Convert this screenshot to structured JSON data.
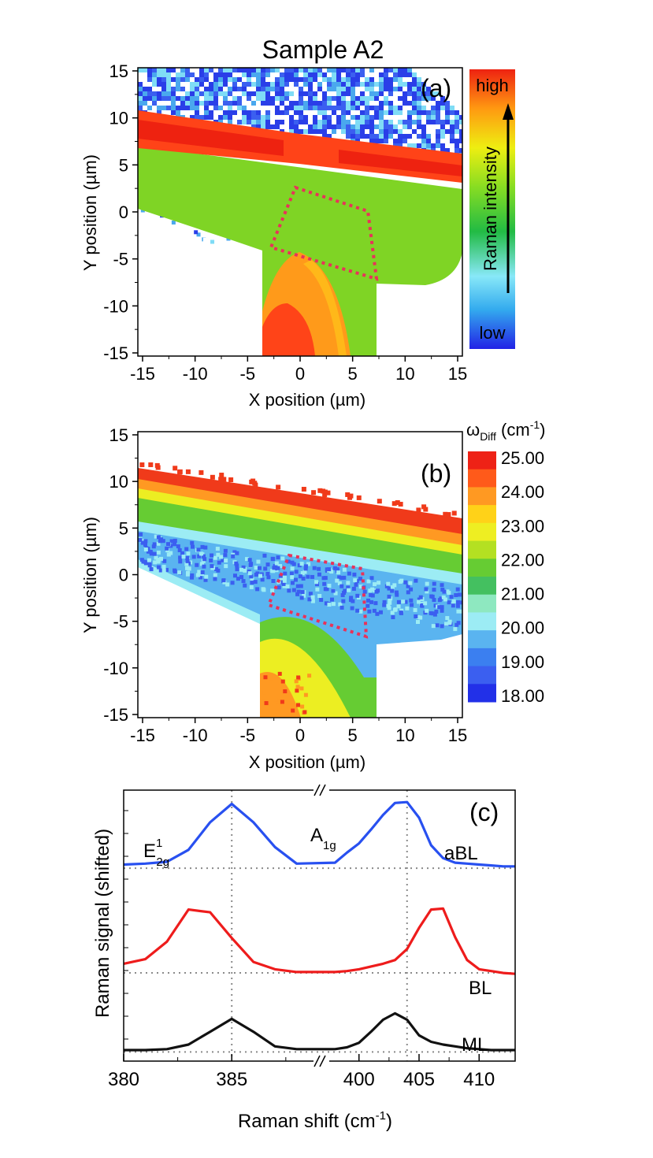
{
  "title": "Sample A2",
  "panels": {
    "a": {
      "label": "(a)",
      "xlabel": "X position (µm)",
      "ylabel": "Y position (µm)",
      "xticks": [
        "-15",
        "-10",
        "-5",
        "0",
        "5",
        "10",
        "15"
      ],
      "yticks": [
        "15",
        "10",
        "5",
        "0",
        "-5",
        "-10",
        "-15"
      ],
      "colorbar": {
        "high": "high",
        "low": "low",
        "label": "Raman intensity"
      }
    },
    "b": {
      "label": "(b)",
      "xlabel": "X position (µm)",
      "ylabel": "Y position (µm)",
      "xticks": [
        "-15",
        "-10",
        "-5",
        "0",
        "5",
        "10",
        "15"
      ],
      "yticks": [
        "15",
        "10",
        "5",
        "0",
        "-5",
        "-10",
        "-15"
      ],
      "colorbar": {
        "title_symbol": "ω",
        "title_sub": "Diff",
        "title_unit_pre": " (cm",
        "title_unit_sup": "-1",
        "title_unit_post": ")",
        "ticks": [
          "25.00",
          "24.00",
          "23.00",
          "22.00",
          "21.00",
          "20.00",
          "19.00",
          "18.00"
        ]
      }
    },
    "c": {
      "label": "(c)",
      "xlabel_pre": "Raman shift (cm",
      "xlabel_sup": "-1",
      "xlabel_post": ")",
      "ylabel": "Raman signal (shifted)",
      "xticks_left": [
        "380",
        "385"
      ],
      "xticks_right": [
        "400",
        "405",
        "410"
      ],
      "peak_e_main": "E",
      "peak_e_sup": "1",
      "peak_e_sub": "2g",
      "peak_a_main": "A",
      "peak_a_sub": "1g",
      "curve_labels": [
        "aBL",
        "BL",
        "ML"
      ]
    }
  },
  "colors": {
    "aBL": "#2850f0",
    "BL": "#ee1c1c",
    "ML": "#111111",
    "roi": "#e8325a",
    "grid": "#8a8a8a"
  },
  "chart_data": [
    {
      "type": "heatmap",
      "panel": "a",
      "title": "Sample A2",
      "xlabel": "X position (µm)",
      "ylabel": "Y position (µm)",
      "xlim": [
        -15,
        15
      ],
      "ylim": [
        -15,
        15
      ],
      "colorscale": [
        "low",
        "high"
      ],
      "colorbar_label": "Raman intensity",
      "roi": [
        [
          -2.5,
          2.5
        ],
        [
          4.5,
          0.5
        ],
        [
          7,
          -7
        ],
        [
          -3,
          -3.5
        ]
      ]
    },
    {
      "type": "heatmap",
      "panel": "b",
      "xlabel": "X position (µm)",
      "ylabel": "Y position (µm)",
      "xlim": [
        -15,
        15
      ],
      "ylim": [
        -15,
        15
      ],
      "colorbar_range": [
        18,
        25
      ],
      "colorbar_unit": "cm-1",
      "roi": [
        [
          -1.5,
          2.5
        ],
        [
          5.5,
          1.5
        ],
        [
          6,
          -7
        ],
        [
          -3,
          -3
        ]
      ]
    },
    {
      "type": "line",
      "panel": "c",
      "xlabel": "Raman shift (cm-1)",
      "ylabel": "Raman signal (shifted)",
      "x_breaks": [
        [
          388,
          398
        ]
      ],
      "vertical_refs": [
        385,
        404
      ],
      "series": [
        {
          "name": "aBL",
          "baseline_y": 2.0,
          "x": [
            380,
            381,
            382,
            383,
            384,
            385,
            386,
            387,
            388,
            398,
            399,
            400,
            401,
            402,
            403,
            404,
            405,
            406,
            407,
            408,
            409,
            410,
            411,
            412,
            413
          ],
          "y": [
            2.04,
            2.05,
            2.07,
            2.2,
            2.5,
            2.7,
            2.5,
            2.23,
            2.05,
            2.06,
            2.17,
            2.27,
            2.42,
            2.58,
            2.71,
            2.72,
            2.55,
            2.25,
            2.11,
            2.06,
            2.05,
            2.04,
            2.03,
            2.02,
            2.02
          ]
        },
        {
          "name": "BL",
          "baseline_y": 0.86,
          "x": [
            380,
            381,
            382,
            383,
            384,
            385,
            386,
            387,
            388,
            398,
            399,
            400,
            401,
            402,
            403,
            404,
            405,
            406,
            407,
            408,
            409,
            410,
            411,
            412,
            413
          ],
          "y": [
            0.96,
            1.01,
            1.2,
            1.55,
            1.52,
            1.24,
            0.98,
            0.9,
            0.87,
            0.87,
            0.88,
            0.9,
            0.93,
            0.96,
            1.0,
            1.12,
            1.35,
            1.55,
            1.56,
            1.25,
            1.0,
            0.9,
            0.88,
            0.86,
            0.85
          ]
        },
        {
          "name": "ML",
          "baseline_y": 0.0,
          "x": [
            380,
            381,
            382,
            383,
            384,
            385,
            386,
            387,
            388,
            398,
            399,
            400,
            401,
            402,
            403,
            404,
            405,
            406,
            407,
            408,
            409,
            410,
            411,
            412,
            413
          ],
          "y": [
            0.02,
            0.02,
            0.03,
            0.08,
            0.22,
            0.36,
            0.22,
            0.06,
            0.03,
            0.03,
            0.05,
            0.1,
            0.22,
            0.35,
            0.42,
            0.35,
            0.18,
            0.11,
            0.08,
            0.06,
            0.04,
            0.03,
            0.02,
            0.02,
            0.02
          ]
        }
      ]
    }
  ]
}
